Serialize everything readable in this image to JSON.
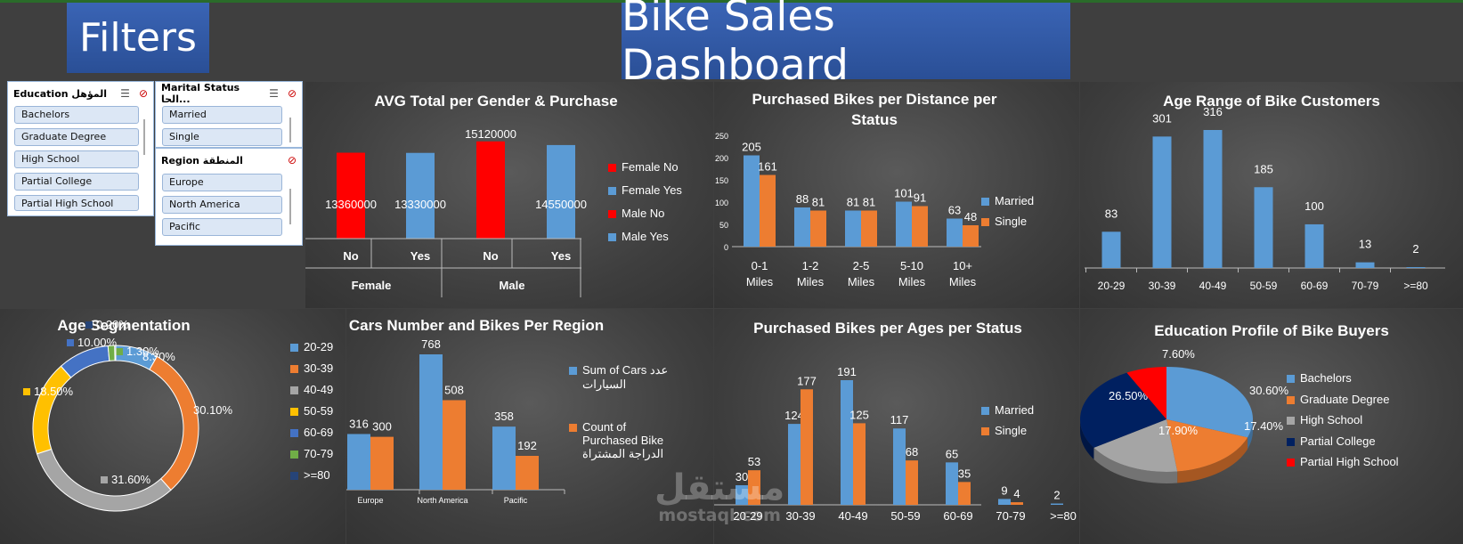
{
  "header": {
    "filters_title": "Filters",
    "dashboard_title": "Bike Sales Dashboard"
  },
  "slicers": {
    "education": {
      "title": "Education المؤهل",
      "items": [
        "Bachelors",
        "Graduate Degree",
        "High School",
        "Partial College",
        "Partial High School"
      ]
    },
    "marital": {
      "title": "Marital Status الحا...",
      "items": [
        "Married",
        "Single"
      ]
    },
    "region": {
      "title": "Region المنطقة",
      "items": [
        "Europe",
        "North America",
        "Pacific"
      ]
    }
  },
  "watermark": {
    "arabic": "مستقل",
    "latin": "mostaql.com"
  },
  "colors": {
    "blue": "#5b9bd5",
    "orange": "#ed7d31",
    "red": "#ff0000",
    "gray": "#a5a5a5",
    "yellow": "#ffc000",
    "navy": "#002060",
    "green": "#70ad47",
    "darkblue": "#264478",
    "midblue": "#4472c4"
  },
  "chart_data": [
    {
      "id": "avg_total",
      "type": "bar",
      "title": "AVG Total per Gender & Purchase",
      "categories": [
        "No",
        "Yes",
        "No",
        "Yes"
      ],
      "groups": [
        "Female",
        "Male"
      ],
      "values": [
        13360000,
        13330000,
        15120000,
        14550000
      ],
      "value_labels": [
        "13360000",
        "13330000",
        "15120000",
        "14550000"
      ],
      "bar_colors": [
        "#ff0000",
        "#5b9bd5",
        "#ff0000",
        "#5b9bd5"
      ],
      "legend": [
        "Female No",
        "Female Yes",
        "Male No",
        "Male Yes"
      ],
      "legend_colors": [
        "#ff0000",
        "#5b9bd5",
        "#ff0000",
        "#5b9bd5"
      ]
    },
    {
      "id": "distance",
      "type": "bar",
      "title": "Purchased Bikes per Distance per Status",
      "categories": [
        "0-1 Miles",
        "1-2 Miles",
        "2-5 Miles",
        "5-10 Miles",
        "10+ Miles"
      ],
      "series": [
        {
          "name": "Married",
          "values": [
            205,
            88,
            81,
            101,
            63
          ]
        },
        {
          "name": "Single",
          "values": [
            161,
            81,
            81,
            91,
            48
          ]
        }
      ],
      "y_ticks": [
        "0",
        "50",
        "100",
        "150",
        "200",
        "250"
      ],
      "ylim": [
        0,
        250
      ]
    },
    {
      "id": "age_range",
      "type": "bar",
      "title": "Age Range of Bike Customers",
      "categories": [
        "20-29",
        "30-39",
        "40-49",
        "50-59",
        "60-69",
        "70-79",
        ">=80"
      ],
      "values": [
        83,
        301,
        316,
        185,
        100,
        13,
        2
      ]
    },
    {
      "id": "age_seg",
      "type": "pie",
      "title": "Age Segmentation",
      "labels": [
        "20-29",
        "30-39",
        "40-49",
        "50-59",
        "60-69",
        "70-79",
        ">=80"
      ],
      "values": [
        8.3,
        30.1,
        31.6,
        18.5,
        10.0,
        1.3,
        0.2
      ],
      "value_labels": [
        "8.30%",
        "30.10%",
        "31.60%",
        "18.50%",
        "10.00%",
        "1.30%",
        "0.20%"
      ],
      "colors": [
        "#5b9bd5",
        "#ed7d31",
        "#a5a5a5",
        "#ffc000",
        "#4472c4",
        "#70ad47",
        "#264478"
      ]
    },
    {
      "id": "region",
      "type": "bar",
      "title": "Cars Number and Bikes Per Region",
      "categories": [
        "Europe",
        "North America",
        "Pacific"
      ],
      "series": [
        {
          "name": "Sum of Cars عدد السيارات",
          "values": [
            316,
            768,
            358
          ]
        },
        {
          "name": "Count of Purchased Bike الدراجة المشتراة",
          "values": [
            300,
            508,
            192
          ]
        }
      ]
    },
    {
      "id": "ages_status",
      "type": "bar",
      "title": "Purchased Bikes per Ages per Status",
      "categories": [
        "20-29",
        "30-39",
        "40-49",
        "50-59",
        "60-69",
        "70-79",
        ">=80"
      ],
      "series": [
        {
          "name": "Married",
          "values": [
            30,
            124,
            191,
            117,
            65,
            9,
            2
          ]
        },
        {
          "name": "Single",
          "values": [
            53,
            177,
            125,
            68,
            35,
            4,
            0
          ]
        }
      ],
      "labels_married": [
        "30",
        "124",
        "191",
        "117",
        "65",
        "9",
        "2"
      ],
      "labels_single": [
        "53",
        "177",
        "125",
        "68",
        "35",
        "4",
        ""
      ]
    },
    {
      "id": "education",
      "type": "pie",
      "title": "Education Profile of Bike Buyers",
      "labels": [
        "Bachelors",
        "Graduate Degree",
        "High School",
        "Partial College",
        "Partial High School"
      ],
      "values": [
        30.6,
        17.4,
        17.9,
        26.5,
        7.6
      ],
      "value_labels": [
        "30.60%",
        "17.40%",
        "17.90%",
        "26.50%",
        "7.60%"
      ],
      "colors": [
        "#5b9bd5",
        "#ed7d31",
        "#a5a5a5",
        "#002060",
        "#ff0000"
      ]
    }
  ]
}
